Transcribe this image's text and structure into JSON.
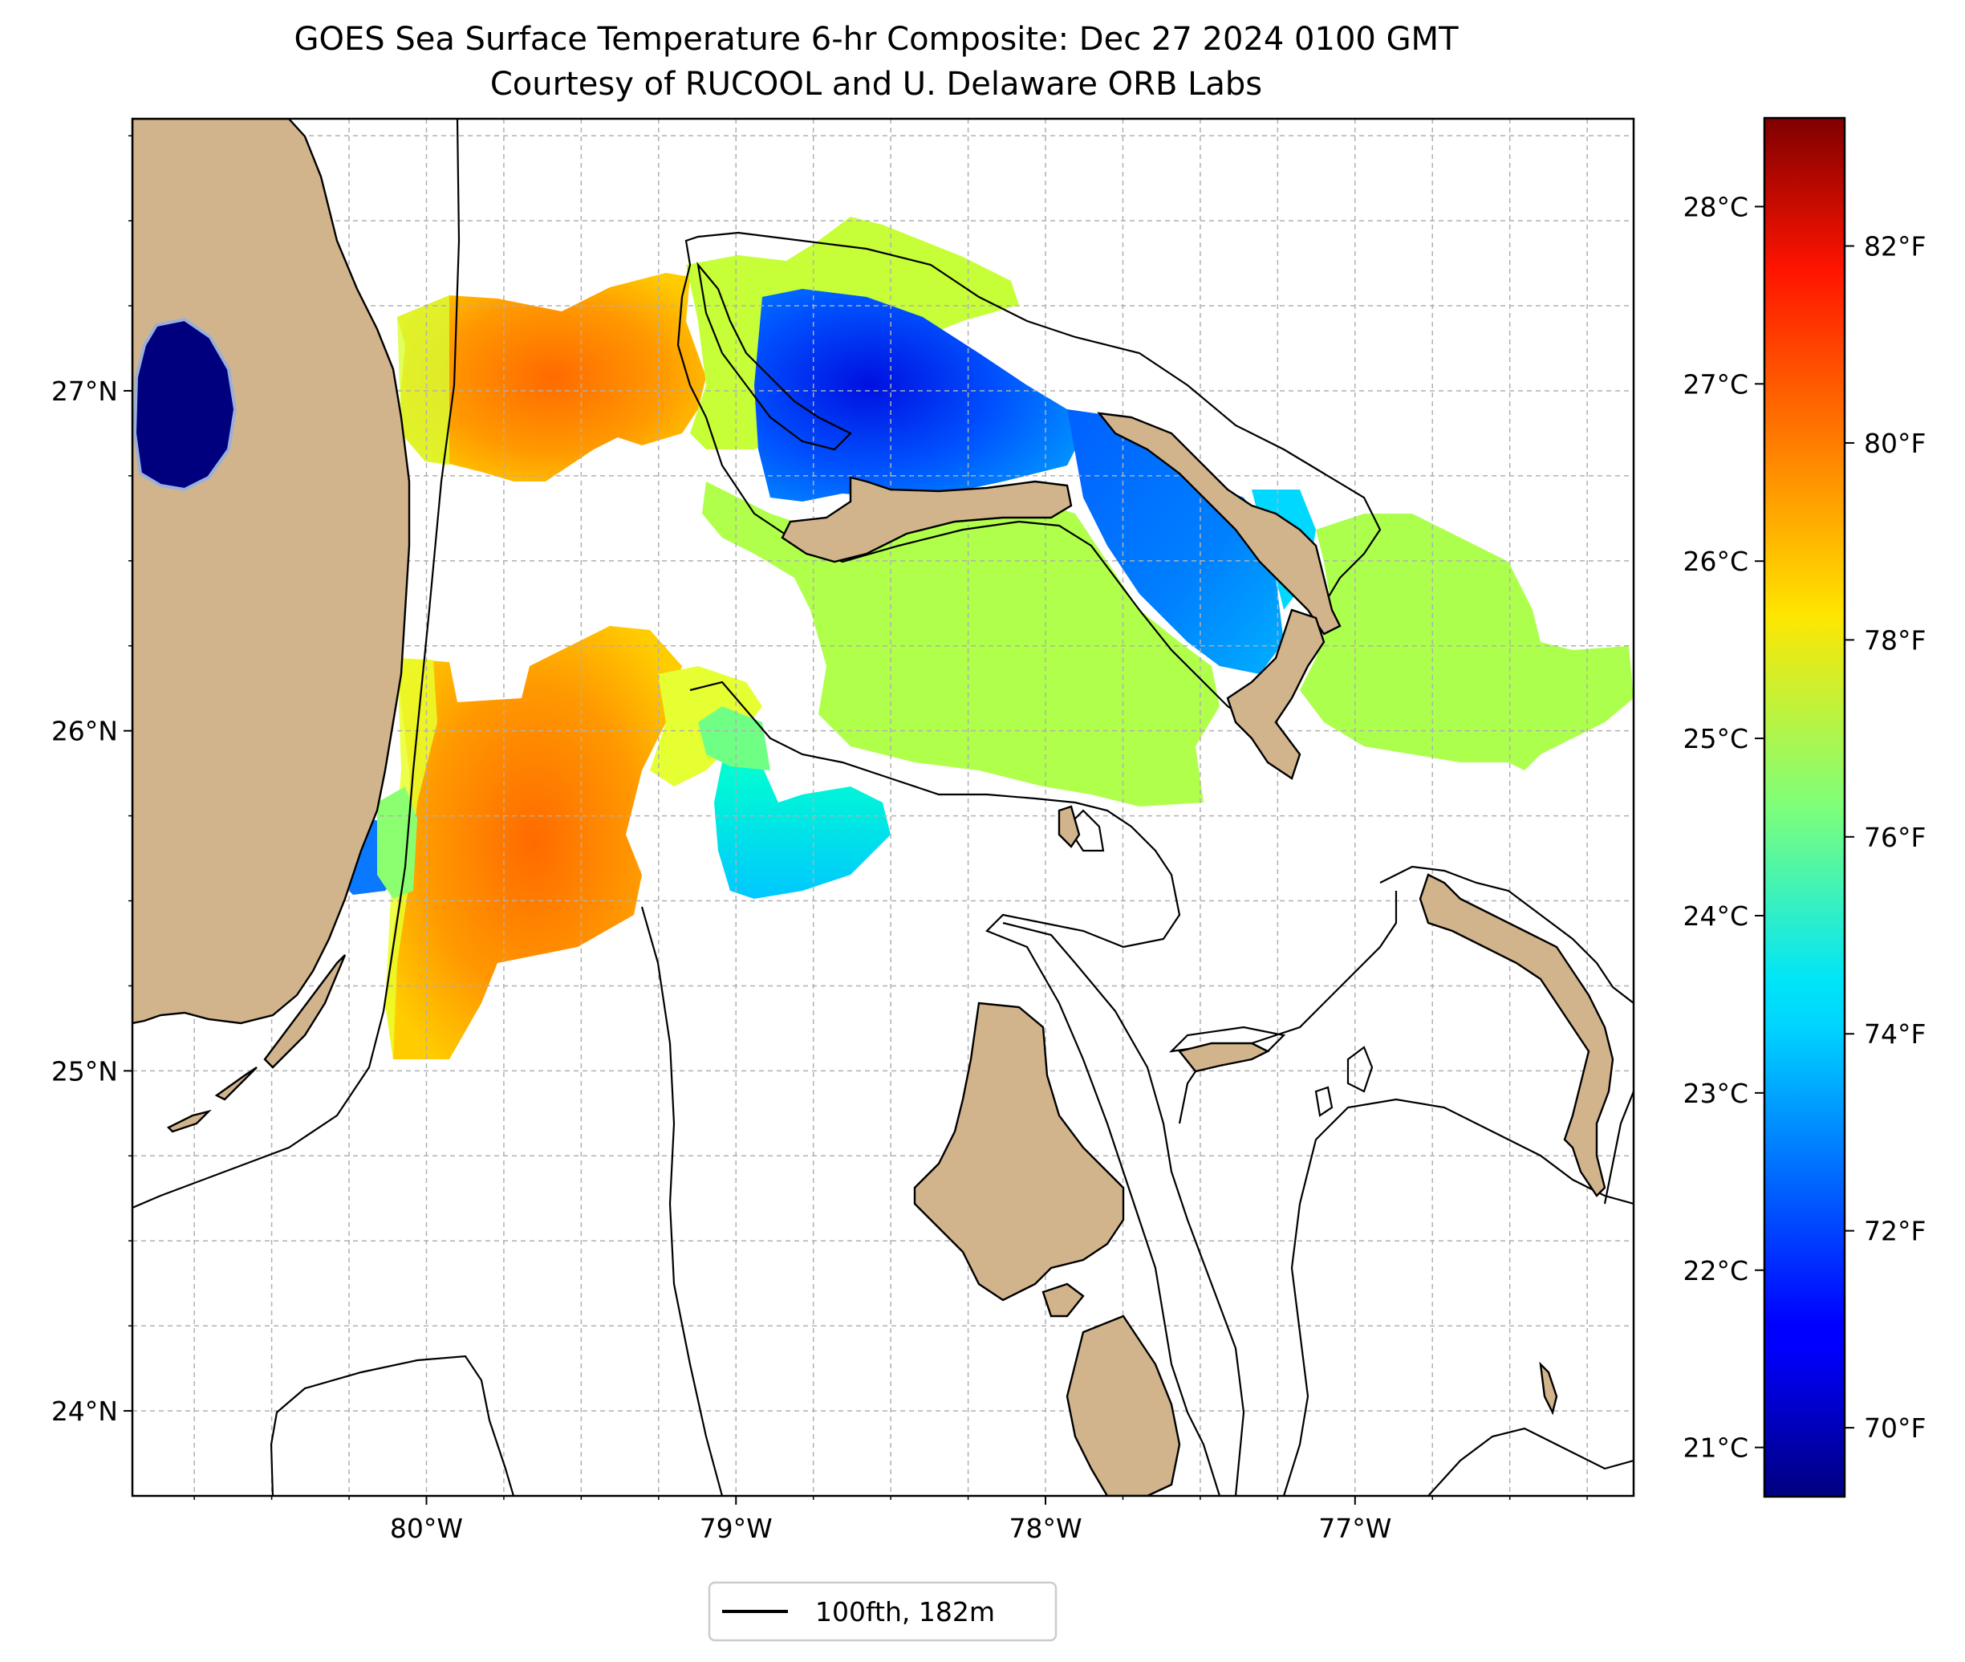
{
  "title": {
    "line1": "GOES Sea Surface Temperature 6-hr Composite: Dec 27 2024 0100 GMT",
    "line2": "Courtesy of RUCOOL and U. Delaware ORB Labs"
  },
  "map": {
    "lon_range": [
      -80.95,
      -76.1
    ],
    "lat_range": [
      23.75,
      27.8
    ],
    "lon_ticks": [
      {
        "value": -80,
        "label": "80°W"
      },
      {
        "value": -79,
        "label": "79°W"
      },
      {
        "value": -78,
        "label": "78°W"
      },
      {
        "value": -77,
        "label": "77°W"
      }
    ],
    "lat_ticks": [
      {
        "value": 27,
        "label": "27°N"
      },
      {
        "value": 26,
        "label": "26°N"
      },
      {
        "value": 25,
        "label": "25°N"
      },
      {
        "value": 24,
        "label": "24°N"
      }
    ],
    "grid": true,
    "land_color": "#d2b48c",
    "legend": {
      "label": "100fth, 182m",
      "placement": "bottom-center"
    }
  },
  "colorbar": {
    "colormap": "jet",
    "range_f": [
      69.3,
      83.3
    ],
    "celsius_ticks": [
      {
        "value": 21,
        "label": "21°C"
      },
      {
        "value": 22,
        "label": "22°C"
      },
      {
        "value": 23,
        "label": "23°C"
      },
      {
        "value": 24,
        "label": "24°C"
      },
      {
        "value": 25,
        "label": "25°C"
      },
      {
        "value": 26,
        "label": "26°C"
      },
      {
        "value": 27,
        "label": "27°C"
      },
      {
        "value": 28,
        "label": "28°C"
      }
    ],
    "fahrenheit_ticks": [
      {
        "value": 70,
        "label": "70°F"
      },
      {
        "value": 72,
        "label": "72°F"
      },
      {
        "value": 74,
        "label": "74°F"
      },
      {
        "value": 76,
        "label": "76°F"
      },
      {
        "value": 78,
        "label": "78°F"
      },
      {
        "value": 80,
        "label": "80°F"
      },
      {
        "value": 82,
        "label": "82°F"
      }
    ]
  }
}
